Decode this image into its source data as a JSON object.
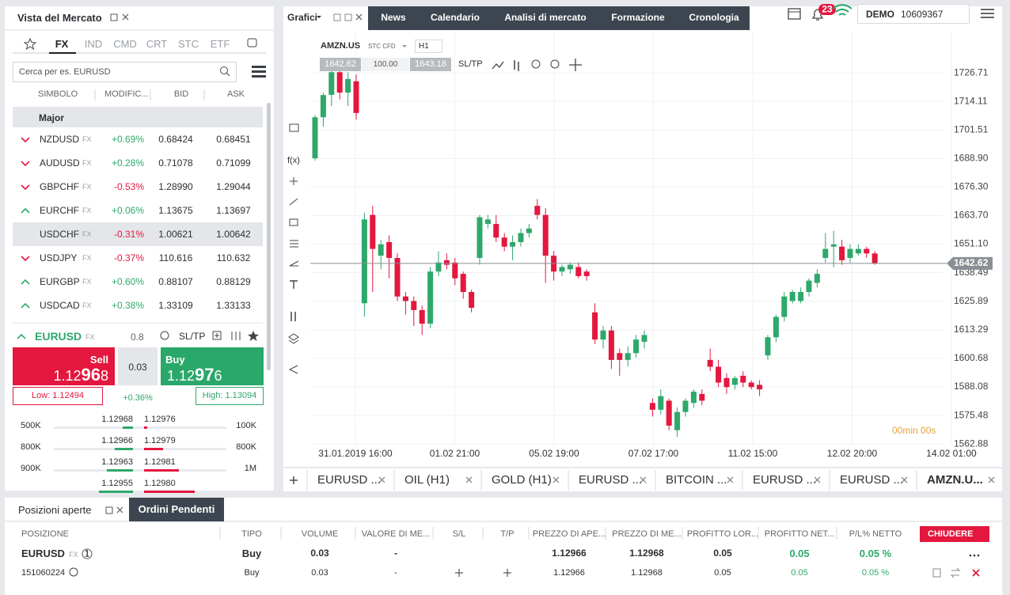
{
  "market_watch": {
    "title": "Vista del Mercato",
    "tabs": [
      "FX",
      "IND",
      "CMD",
      "CRT",
      "STC",
      "ETF"
    ],
    "search_placeholder": "Cerca per es. EURUSD",
    "columns": [
      "SIMBOLO",
      "MODIFIC...",
      "BID",
      "ASK"
    ],
    "group": "Major",
    "rows": [
      {
        "symbol": "NZDUSD",
        "tag": "FX",
        "change": "+0.69%",
        "bid": "0.68424",
        "ask": "0.68451",
        "arrow": "down"
      },
      {
        "symbol": "AUDUSD",
        "tag": "FX",
        "change": "+0.28%",
        "bid": "0.71078",
        "ask": "0.71099",
        "arrow": "down"
      },
      {
        "symbol": "GBPCHF",
        "tag": "FX",
        "change": "-0.53%",
        "bid": "1.28990",
        "ask": "1.29044",
        "arrow": "down"
      },
      {
        "symbol": "EURCHF",
        "tag": "FX",
        "change": "+0.06%",
        "bid": "1.13675",
        "ask": "1.13697",
        "arrow": "up"
      },
      {
        "symbol": "USDCHF",
        "tag": "FX",
        "change": "-0.31%",
        "bid": "1.00621",
        "ask": "1.00642",
        "arrow": "down"
      },
      {
        "symbol": "USDJPY",
        "tag": "FX",
        "change": "-0.37%",
        "bid": "110.616",
        "ask": "110.632",
        "arrow": "down"
      },
      {
        "symbol": "EURGBP",
        "tag": "FX",
        "change": "+0.60%",
        "bid": "0.88107",
        "ask": "0.88129",
        "arrow": "up"
      },
      {
        "symbol": "USDCAD",
        "tag": "FX",
        "change": "+0.38%",
        "bid": "1.33109",
        "ask": "1.33133",
        "arrow": "up"
      }
    ]
  },
  "ticket": {
    "symbol": "EURUSD",
    "tag": "FX",
    "spread_pips": "0.8",
    "sltp": "SL/TP",
    "sell": "Sell",
    "sell_price": {
      "pre": "1.12",
      "big": "96",
      "post": "8"
    },
    "spread": "0.03",
    "buy": "Buy",
    "buy_price": {
      "pre": "1.12",
      "big": "97",
      "post": "6"
    },
    "low": "Low: 1.12494",
    "change": "+0.36%",
    "high": "High: 1.13094",
    "depth": [
      {
        "vol_bid": "500K",
        "bid": "1.12968",
        "ask": "1.12976",
        "vol_ask": "100K"
      },
      {
        "vol_bid": "800K",
        "bid": "1.12966",
        "ask": "1.12979",
        "vol_ask": "800K"
      },
      {
        "vol_bid": "900K",
        "bid": "1.12963",
        "ask": "1.12981",
        "vol_ask": "1M"
      },
      {
        "vol_bid": "",
        "bid": "1.12955",
        "ask": "1.12980",
        "vol_ask": ""
      }
    ]
  },
  "topbar": {
    "charts": "Grafici",
    "nav": [
      "News",
      "Calendario",
      "Analisi di mercato",
      "Formazione",
      "Cronologia"
    ],
    "notifications": "23",
    "account_type": "DEMO",
    "account_id": "10609367"
  },
  "chart_header": {
    "symbol": "AMZN.US",
    "instrument": "STC CFD",
    "timeframe": "H1",
    "bid": "1642.62",
    "volume": "100.00",
    "ask": "1643.18",
    "sltp": "SL/TP",
    "tool_fx": "f(x)"
  },
  "chart": {
    "type": "candlestick",
    "open": [
      1689.0,
      1707.1,
      1717,
      1727,
      1718,
      1723,
      1625,
      1664,
      1646,
      1652,
      1645,
      1628,
      1626,
      1622,
      1616,
      1639,
      1644,
      1643,
      1638,
      1630,
      1645,
      1660,
      1660,
      1654,
      1650,
      1652,
      1656,
      1668,
      1664,
      1646,
      1639,
      1640,
      1641,
      1639,
      1621,
      1609,
      1613,
      1603,
      1600,
      1603,
      1608,
      1581,
      1578,
      1582,
      1569,
      1577,
      1581,
      1585,
      1600,
      1597,
      1592,
      1589,
      1593,
      1590,
      1589,
      1602,
      1610,
      1619,
      1626,
      1626,
      1630,
      1634,
      1645,
      1650,
      1650,
      1645,
      1647,
      1649,
      1647
    ],
    "high": [
      1708,
      1718,
      1730,
      1730,
      1727,
      1726,
      1665,
      1668,
      1653,
      1655,
      1647,
      1630,
      1628,
      1624,
      1641,
      1648,
      1647,
      1645,
      1639,
      1631,
      1664,
      1664,
      1664,
      1656,
      1655,
      1658,
      1660,
      1671,
      1667,
      1648,
      1642,
      1643,
      1643,
      1640,
      1625,
      1615,
      1615,
      1605,
      1606,
      1611,
      1613,
      1583,
      1587,
      1583,
      1579,
      1583,
      1587,
      1587,
      1605,
      1600,
      1594,
      1593,
      1595,
      1591,
      1591,
      1611,
      1620,
      1630,
      1631,
      1632,
      1636,
      1640,
      1656,
      1657,
      1653,
      1651,
      1651,
      1650,
      1648
    ],
    "low": [
      1688,
      1703,
      1712,
      1715,
      1712,
      1706,
      1619,
      1630,
      1640,
      1636,
      1626,
      1620,
      1615,
      1611,
      1614,
      1637,
      1640,
      1633,
      1627,
      1621,
      1642,
      1658,
      1652,
      1648,
      1644,
      1650,
      1654,
      1662,
      1634,
      1635,
      1637,
      1638,
      1636,
      1635,
      1607,
      1605,
      1596,
      1593,
      1597,
      1601,
      1605,
      1575,
      1576,
      1569,
      1566,
      1575,
      1579,
      1580,
      1595,
      1588,
      1585,
      1587,
      1588,
      1587,
      1584,
      1600,
      1608,
      1617,
      1625,
      1625,
      1628,
      1632,
      1643,
      1641,
      1642,
      1643,
      1646,
      1645,
      1642
    ],
    "close": [
      1707.1,
      1716.9,
      1727,
      1718,
      1724,
      1709,
      1662,
      1649,
      1651,
      1645,
      1628,
      1626,
      1622,
      1616,
      1639,
      1643,
      1642,
      1636,
      1630,
      1623,
      1663,
      1662,
      1654,
      1650,
      1652,
      1656,
      1658,
      1664,
      1646,
      1639,
      1641,
      1642,
      1637,
      1637,
      1609,
      1613,
      1600,
      1600,
      1603,
      1609,
      1611,
      1578,
      1584,
      1571,
      1577,
      1582,
      1586,
      1582,
      1597,
      1590,
      1588,
      1592,
      1590,
      1588,
      1587,
      1610,
      1619,
      1628,
      1630,
      1630,
      1635,
      1638,
      1649,
      1651,
      1644,
      1649,
      1649,
      1647,
      1642.62
    ],
    "up_color": "#2ea86b",
    "down_color": "#e4173e",
    "ylim": [
      1556.3,
      1744.9
    ],
    "yticks": [
      1562.88,
      1575.48,
      1588.08,
      1600.68,
      1613.29,
      1625.89,
      1638.49,
      {
        "value": 1651.1,
        "label": "1651.10"
      },
      {
        "value": 1663.7,
        "label": "1663.70"
      },
      {
        "value": 1676.3,
        "label": "1676.30"
      },
      {
        "value": 1688.9,
        "label": "1688.90"
      },
      1701.51,
      1714.11,
      1726.71
    ],
    "xlabels": [
      "31.01.2019 16:00",
      "01.02 21:00",
      "05.02 19:00",
      "07.02 17:00",
      "11.02 15:00",
      "12.02 20:00",
      "14.02 01:00"
    ],
    "current_price": 1642.62,
    "countdown": "00min 00s",
    "grid": true
  },
  "chart_tabs": [
    "EURUSD ...",
    "OIL (H1)",
    "GOLD (H1)",
    "EURUSD ...",
    "BITCOIN ...",
    "EURUSD ...",
    "EURUSD ...",
    "AMZN.U..."
  ],
  "positions": {
    "tabs": [
      "Posizioni aperte",
      "Ordini Pendenti"
    ],
    "columns": [
      "POSIZIONE",
      "TIPO",
      "VOLUME",
      "VALORE DI ME...",
      "S/L",
      "T/P",
      "PREZZO DI APE...",
      "PREZZO DI ME...",
      "PROFITTO LOR...",
      "PROFITTO NET...",
      "P/L% NETTO"
    ],
    "close_all": "CHIUDERE",
    "summary": {
      "symbol": "EURUSD",
      "tag": "FX",
      "count": "1",
      "type": "Buy",
      "volume": "0.03",
      "market_value": "-",
      "open_price": "1.12966",
      "market_price": "1.12968",
      "gross_profit": "0.05",
      "net_profit": "0.05",
      "pl_pct": "0.05 %"
    },
    "detail": {
      "id": "151060224",
      "type": "Buy",
      "volume": "0.03",
      "market_value": "-",
      "open_price": "1.12966",
      "market_price": "1.12968",
      "gross_profit": "0.05",
      "net_profit": "0.05",
      "pl_pct": "0.05 %"
    }
  }
}
